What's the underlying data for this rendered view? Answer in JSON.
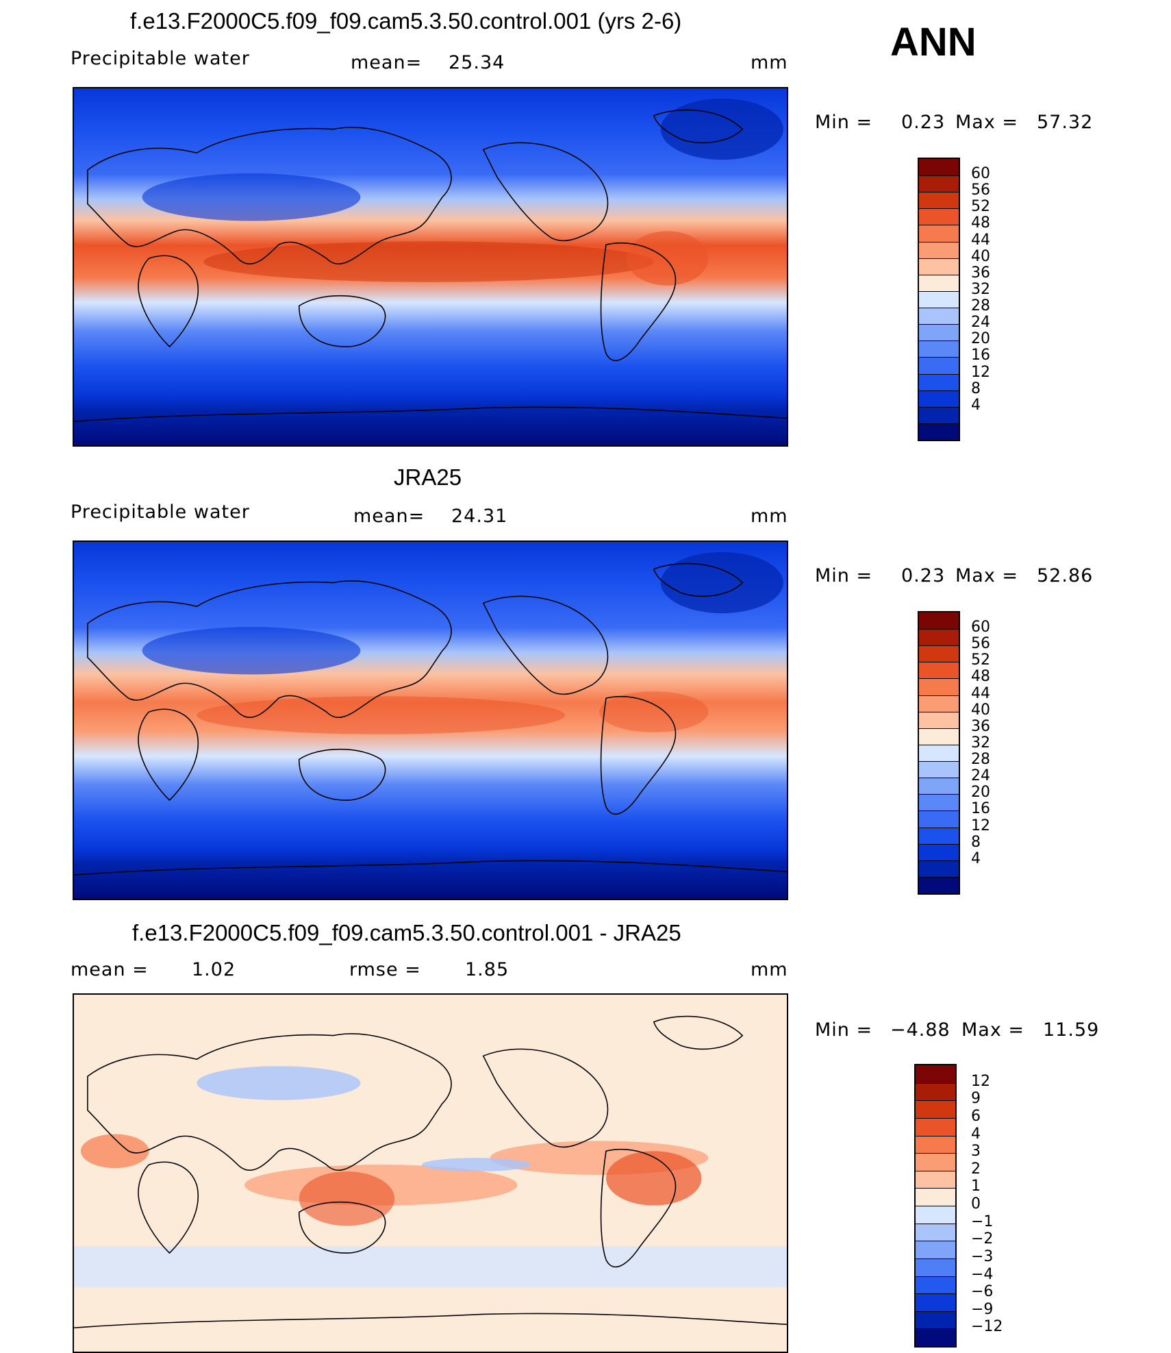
{
  "season": "ANN",
  "palettes": {
    "field": [
      "#000a7a",
      "#0024ae",
      "#0737d9",
      "#1b52ee",
      "#3a6bf5",
      "#5b88f7",
      "#7ea5f8",
      "#a8c4fb",
      "#d6e6ff",
      "#fdebd9",
      "#fcc2a1",
      "#fb9d74",
      "#f67a4c",
      "#eb5428",
      "#d23810",
      "#a91c06",
      "#7a0502"
    ],
    "diff": [
      "#000a7a",
      "#0024ae",
      "#0b3ad8",
      "#2459ef",
      "#4e7ff4",
      "#7ea5f8",
      "#a8c4fb",
      "#d6e6ff",
      "#fdebd9",
      "#fcc2a1",
      "#fb9d74",
      "#f67a4c",
      "#eb5428",
      "#d23810",
      "#a91c06",
      "#7a0502"
    ]
  },
  "panels": [
    {
      "title": "f.e13.F2000C5.f09_f09.cam5.3.50.control.001 (yrs 2-6)",
      "left_label": "Precipitable  water",
      "center_label": "mean=",
      "center_value": "25.34",
      "units": "mm",
      "min_label": "Min  =",
      "min_value": "0.23",
      "max_label": "Max  =",
      "max_value": "57.32",
      "colorbar_labels": [
        "60",
        "56",
        "52",
        "48",
        "44",
        "40",
        "36",
        "32",
        "28",
        "24",
        "20",
        "16",
        "12",
        "8",
        "4"
      ]
    },
    {
      "title": "JRA25",
      "left_label": "Precipitable  water",
      "center_label": "mean=",
      "center_value": "24.31",
      "units": "mm",
      "min_label": "Min  =",
      "min_value": "0.23",
      "max_label": "Max  =",
      "max_value": "52.86",
      "colorbar_labels": [
        "60",
        "56",
        "52",
        "48",
        "44",
        "40",
        "36",
        "32",
        "28",
        "24",
        "20",
        "16",
        "12",
        "8",
        "4"
      ]
    },
    {
      "title": "f.e13.F2000C5.f09_f09.cam5.3.50.control.001 - JRA25",
      "left_label": "mean  =",
      "left_value": "1.02",
      "center_label": "rmse  =",
      "center_value": "1.85",
      "units": "mm",
      "min_label": "Min  =",
      "min_value": "−4.88",
      "max_label": "Max  =",
      "max_value": "11.59",
      "colorbar_labels": [
        "12",
        "9",
        "6",
        "4",
        "3",
        "2",
        "1",
        "0",
        "−1",
        "−2",
        "−3",
        "−4",
        "−6",
        "−9",
        "−12"
      ]
    }
  ]
}
